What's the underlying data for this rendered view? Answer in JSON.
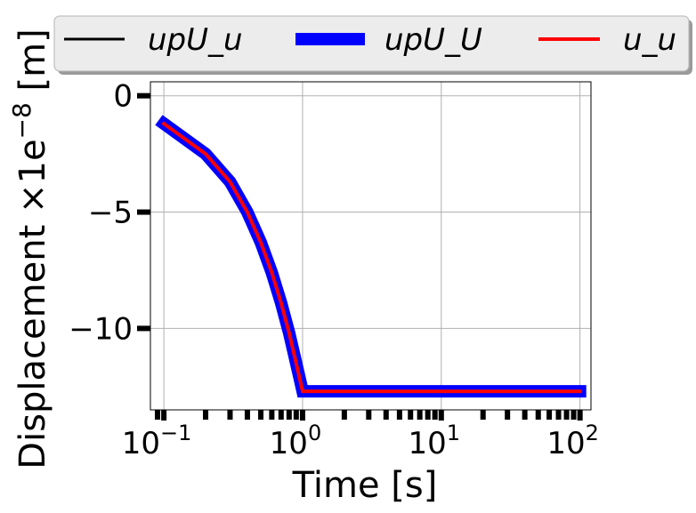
{
  "chart_data": {
    "type": "line",
    "xlabel": "Time [s]",
    "ylabel": "Displacement ×1e",
    "ylabel_exponent": "−8",
    "ylabel_unit": " [m]",
    "xscale": "log",
    "xlim": [
      0.08,
      120
    ],
    "ylim": [
      -13.5,
      0.6
    ],
    "grid": true,
    "legend_position": "top",
    "x_ticks": [
      {
        "base": "10",
        "exp": "−1",
        "value": 0.1
      },
      {
        "base": "10",
        "exp": "0",
        "value": 1
      },
      {
        "base": "10",
        "exp": "1",
        "value": 10
      },
      {
        "base": "10",
        "exp": "2",
        "value": 100
      }
    ],
    "y_ticks": [
      {
        "label": "0",
        "value": 0
      },
      {
        "label": "−5",
        "value": -5
      },
      {
        "label": "−10",
        "value": -10
      }
    ],
    "x_minor_ticks": [
      0.09,
      0.2,
      0.3,
      0.4,
      0.5,
      0.6,
      0.7,
      0.8,
      0.9,
      2,
      3,
      4,
      5,
      6,
      7,
      8,
      9,
      20,
      30,
      40,
      50,
      60,
      70,
      80,
      90
    ],
    "series": [
      {
        "name": "upU_u",
        "color": "#000000",
        "width": 3,
        "x": [
          0.1,
          0.2,
          0.3,
          0.4,
          0.5,
          0.6,
          0.7,
          0.8,
          0.9,
          1.0,
          2,
          5,
          10,
          20,
          50,
          100
        ],
        "y": [
          -1.2,
          -2.5,
          -3.7,
          -5.0,
          -6.3,
          -7.6,
          -8.9,
          -10.2,
          -11.5,
          -12.7,
          -12.7,
          -12.7,
          -12.7,
          -12.7,
          -12.7,
          -12.7
        ]
      },
      {
        "name": "upU_U",
        "color": "#0000ff",
        "width": 14,
        "x": [
          0.1,
          0.2,
          0.3,
          0.4,
          0.5,
          0.6,
          0.7,
          0.8,
          0.9,
          1.0,
          2,
          5,
          10,
          20,
          50,
          100
        ],
        "y": [
          -1.2,
          -2.5,
          -3.7,
          -5.0,
          -6.3,
          -7.6,
          -8.9,
          -10.2,
          -11.5,
          -12.7,
          -12.7,
          -12.7,
          -12.7,
          -12.7,
          -12.7,
          -12.7
        ]
      },
      {
        "name": "u_u",
        "color": "#ff0000",
        "width": 4,
        "x": [
          0.1,
          0.2,
          0.3,
          0.4,
          0.5,
          0.6,
          0.7,
          0.8,
          0.9,
          1.0,
          2,
          5,
          10,
          20,
          50,
          100
        ],
        "y": [
          -1.2,
          -2.5,
          -3.7,
          -5.0,
          -6.3,
          -7.6,
          -8.9,
          -10.2,
          -11.5,
          -12.7,
          -12.7,
          -12.7,
          -12.7,
          -12.7,
          -12.7,
          -12.7
        ]
      }
    ],
    "draw_order": [
      "upU_U",
      "upU_u",
      "u_u"
    ]
  }
}
